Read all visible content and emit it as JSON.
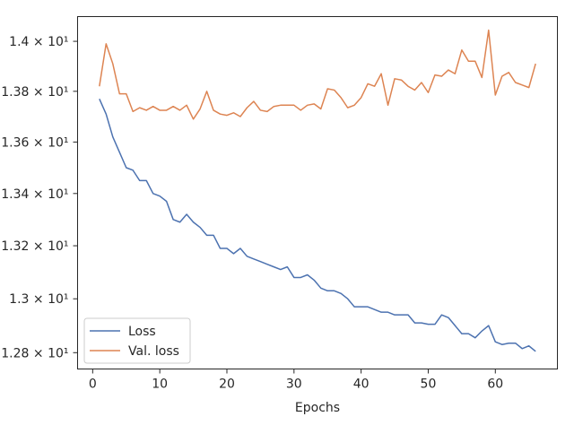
{
  "chart_data": {
    "type": "line",
    "xlabel": "Epochs",
    "ylabel": "",
    "y_scale": "log",
    "xlim": [
      -2.25,
      69.25
    ],
    "ylim": [
      12.74,
      14.1
    ],
    "x_ticks": [
      0,
      10,
      20,
      30,
      40,
      50,
      60
    ],
    "x_tick_labels": [
      "0",
      "10",
      "20",
      "30",
      "40",
      "50",
      "60"
    ],
    "y_ticks": [
      12.8,
      13.0,
      13.2,
      13.4,
      13.6,
      13.8,
      14.0
    ],
    "y_tick_labels": [
      "1.28 × 10¹",
      "1.3 × 10¹",
      "1.32 × 10¹",
      "1.34 × 10¹",
      "1.36 × 10¹",
      "1.38 × 10¹",
      "1.4 × 10¹"
    ],
    "grid": false,
    "legend_placement": "lower-left",
    "x": [
      1,
      2,
      3,
      4,
      5,
      6,
      7,
      8,
      9,
      10,
      11,
      12,
      13,
      14,
      15,
      16,
      17,
      18,
      19,
      20,
      21,
      22,
      23,
      24,
      25,
      26,
      27,
      28,
      29,
      30,
      31,
      32,
      33,
      34,
      35,
      36,
      37,
      38,
      39,
      40,
      41,
      42,
      43,
      44,
      45,
      46,
      47,
      48,
      49,
      50,
      51,
      52,
      53,
      54,
      55,
      56,
      57,
      58,
      59,
      60,
      61,
      62,
      63,
      64,
      65,
      66
    ],
    "series": [
      {
        "name": "Loss",
        "color": "#4c72b0",
        "values": [
          13.77,
          13.71,
          13.62,
          13.56,
          13.5,
          13.49,
          13.45,
          13.45,
          13.4,
          13.39,
          13.37,
          13.3,
          13.29,
          13.32,
          13.29,
          13.27,
          13.24,
          13.24,
          13.19,
          13.19,
          13.17,
          13.19,
          13.16,
          13.15,
          13.14,
          13.13,
          13.12,
          13.11,
          13.12,
          13.08,
          13.08,
          13.09,
          13.07,
          13.04,
          13.03,
          13.03,
          13.02,
          13.0,
          12.97,
          12.97,
          12.97,
          12.96,
          12.95,
          12.95,
          12.94,
          12.94,
          12.94,
          12.91,
          12.91,
          12.905,
          12.905,
          12.94,
          12.93,
          12.9,
          12.87,
          12.87,
          12.855,
          12.88,
          12.9,
          12.84,
          12.83,
          12.835,
          12.835,
          12.815,
          12.825,
          12.805
        ]
      },
      {
        "name": "Val. loss",
        "color": "#dd8452",
        "values": [
          13.82,
          13.99,
          13.91,
          13.79,
          13.79,
          13.72,
          13.735,
          13.725,
          13.74,
          13.725,
          13.725,
          13.74,
          13.725,
          13.745,
          13.69,
          13.73,
          13.8,
          13.725,
          13.71,
          13.705,
          13.715,
          13.7,
          13.735,
          13.76,
          13.725,
          13.72,
          13.74,
          13.745,
          13.745,
          13.745,
          13.725,
          13.745,
          13.75,
          13.73,
          13.81,
          13.805,
          13.775,
          13.735,
          13.745,
          13.775,
          13.83,
          13.82,
          13.87,
          13.745,
          13.85,
          13.845,
          13.82,
          13.805,
          13.835,
          13.795,
          13.865,
          13.86,
          13.885,
          13.87,
          13.965,
          13.92,
          13.92,
          13.855,
          14.045,
          13.785,
          13.86,
          13.875,
          13.835,
          13.825,
          13.815,
          13.91
        ]
      }
    ]
  }
}
